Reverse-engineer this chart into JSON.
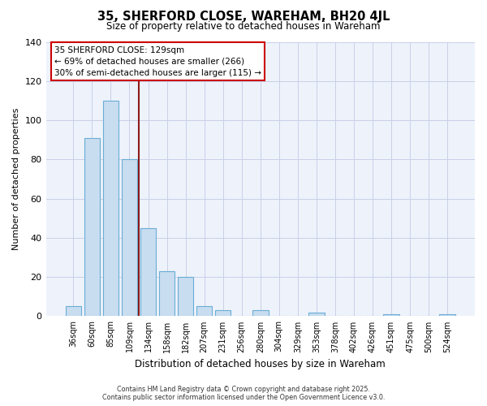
{
  "title": "35, SHERFORD CLOSE, WAREHAM, BH20 4JL",
  "subtitle": "Size of property relative to detached houses in Wareham",
  "xlabel": "Distribution of detached houses by size in Wareham",
  "ylabel": "Number of detached properties",
  "bar_labels": [
    "36sqm",
    "60sqm",
    "85sqm",
    "109sqm",
    "134sqm",
    "158sqm",
    "182sqm",
    "207sqm",
    "231sqm",
    "256sqm",
    "280sqm",
    "304sqm",
    "329sqm",
    "353sqm",
    "378sqm",
    "402sqm",
    "426sqm",
    "451sqm",
    "475sqm",
    "500sqm",
    "524sqm"
  ],
  "bar_values": [
    5,
    91,
    110,
    80,
    45,
    23,
    20,
    5,
    3,
    0,
    3,
    0,
    0,
    2,
    0,
    0,
    0,
    1,
    0,
    0,
    1
  ],
  "bar_color": "#c8ddf0",
  "bar_edge_color": "#6aadd5",
  "ylim": [
    0,
    140
  ],
  "yticks": [
    0,
    20,
    40,
    60,
    80,
    100,
    120,
    140
  ],
  "vline_color": "#8b1a1a",
  "annotation_title": "35 SHERFORD CLOSE: 129sqm",
  "annotation_line1": "← 69% of detached houses are smaller (266)",
  "annotation_line2": "30% of semi-detached houses are larger (115) →",
  "annotation_box_color": "#ffffff",
  "annotation_box_edge": "#cc0000",
  "footer1": "Contains HM Land Registry data © Crown copyright and database right 2025.",
  "footer2": "Contains public sector information licensed under the Open Government Licence v3.0.",
  "bg_color": "#ffffff",
  "plot_bg_color": "#eef2fb",
  "grid_color": "#c8d0e8"
}
